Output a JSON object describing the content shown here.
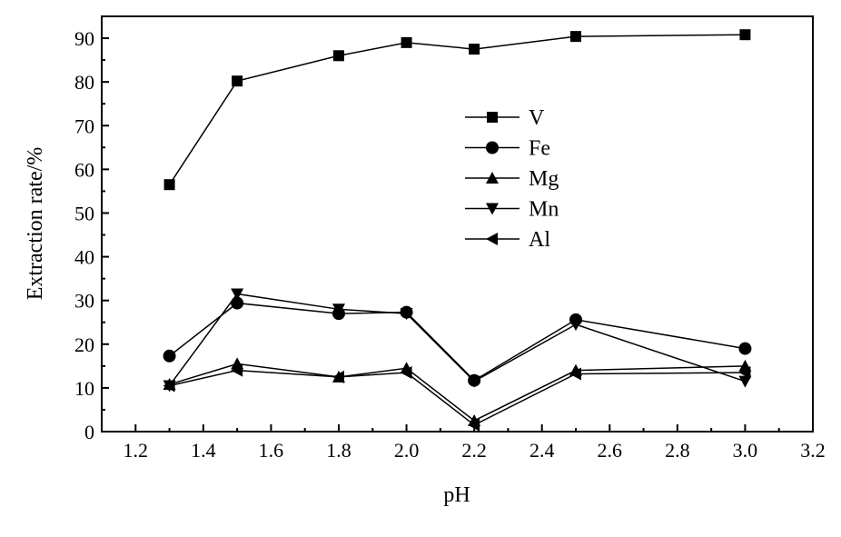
{
  "chart_data": {
    "type": "line",
    "title": "",
    "xlabel": "pH",
    "ylabel": "Extraction rate/%",
    "xlim": [
      1.1,
      3.2
    ],
    "ylim": [
      0,
      95
    ],
    "xticks": [
      "1.2",
      "1.4",
      "1.6",
      "1.8",
      "2.0",
      "2.2",
      "2.4",
      "2.6",
      "2.8",
      "3.0",
      "3.2"
    ],
    "yticks": [
      "0",
      "10",
      "20",
      "30",
      "40",
      "50",
      "60",
      "70",
      "80",
      "90"
    ],
    "grid": false,
    "legend_position": "center",
    "x": [
      1.3,
      1.5,
      1.8,
      2.0,
      2.2,
      2.5,
      3.0
    ],
    "series": [
      {
        "name": "V",
        "marker": "square",
        "values": [
          56.5,
          80.2,
          86.0,
          89.0,
          87.5,
          90.4,
          90.8
        ]
      },
      {
        "name": "Fe",
        "marker": "circle",
        "values": [
          17.3,
          29.4,
          27.0,
          27.3,
          11.7,
          25.6,
          19.0
        ]
      },
      {
        "name": "Mg",
        "marker": "triangle-up",
        "values": [
          10.8,
          15.5,
          12.5,
          14.5,
          2.5,
          14.0,
          15.0
        ]
      },
      {
        "name": "Mn",
        "marker": "triangle-down",
        "values": [
          10.5,
          31.5,
          28.0,
          27.0,
          11.5,
          24.5,
          11.5
        ]
      },
      {
        "name": "Al",
        "marker": "triangle-left",
        "values": [
          10.5,
          14.0,
          12.5,
          13.5,
          1.5,
          13.2,
          13.5
        ]
      }
    ]
  }
}
